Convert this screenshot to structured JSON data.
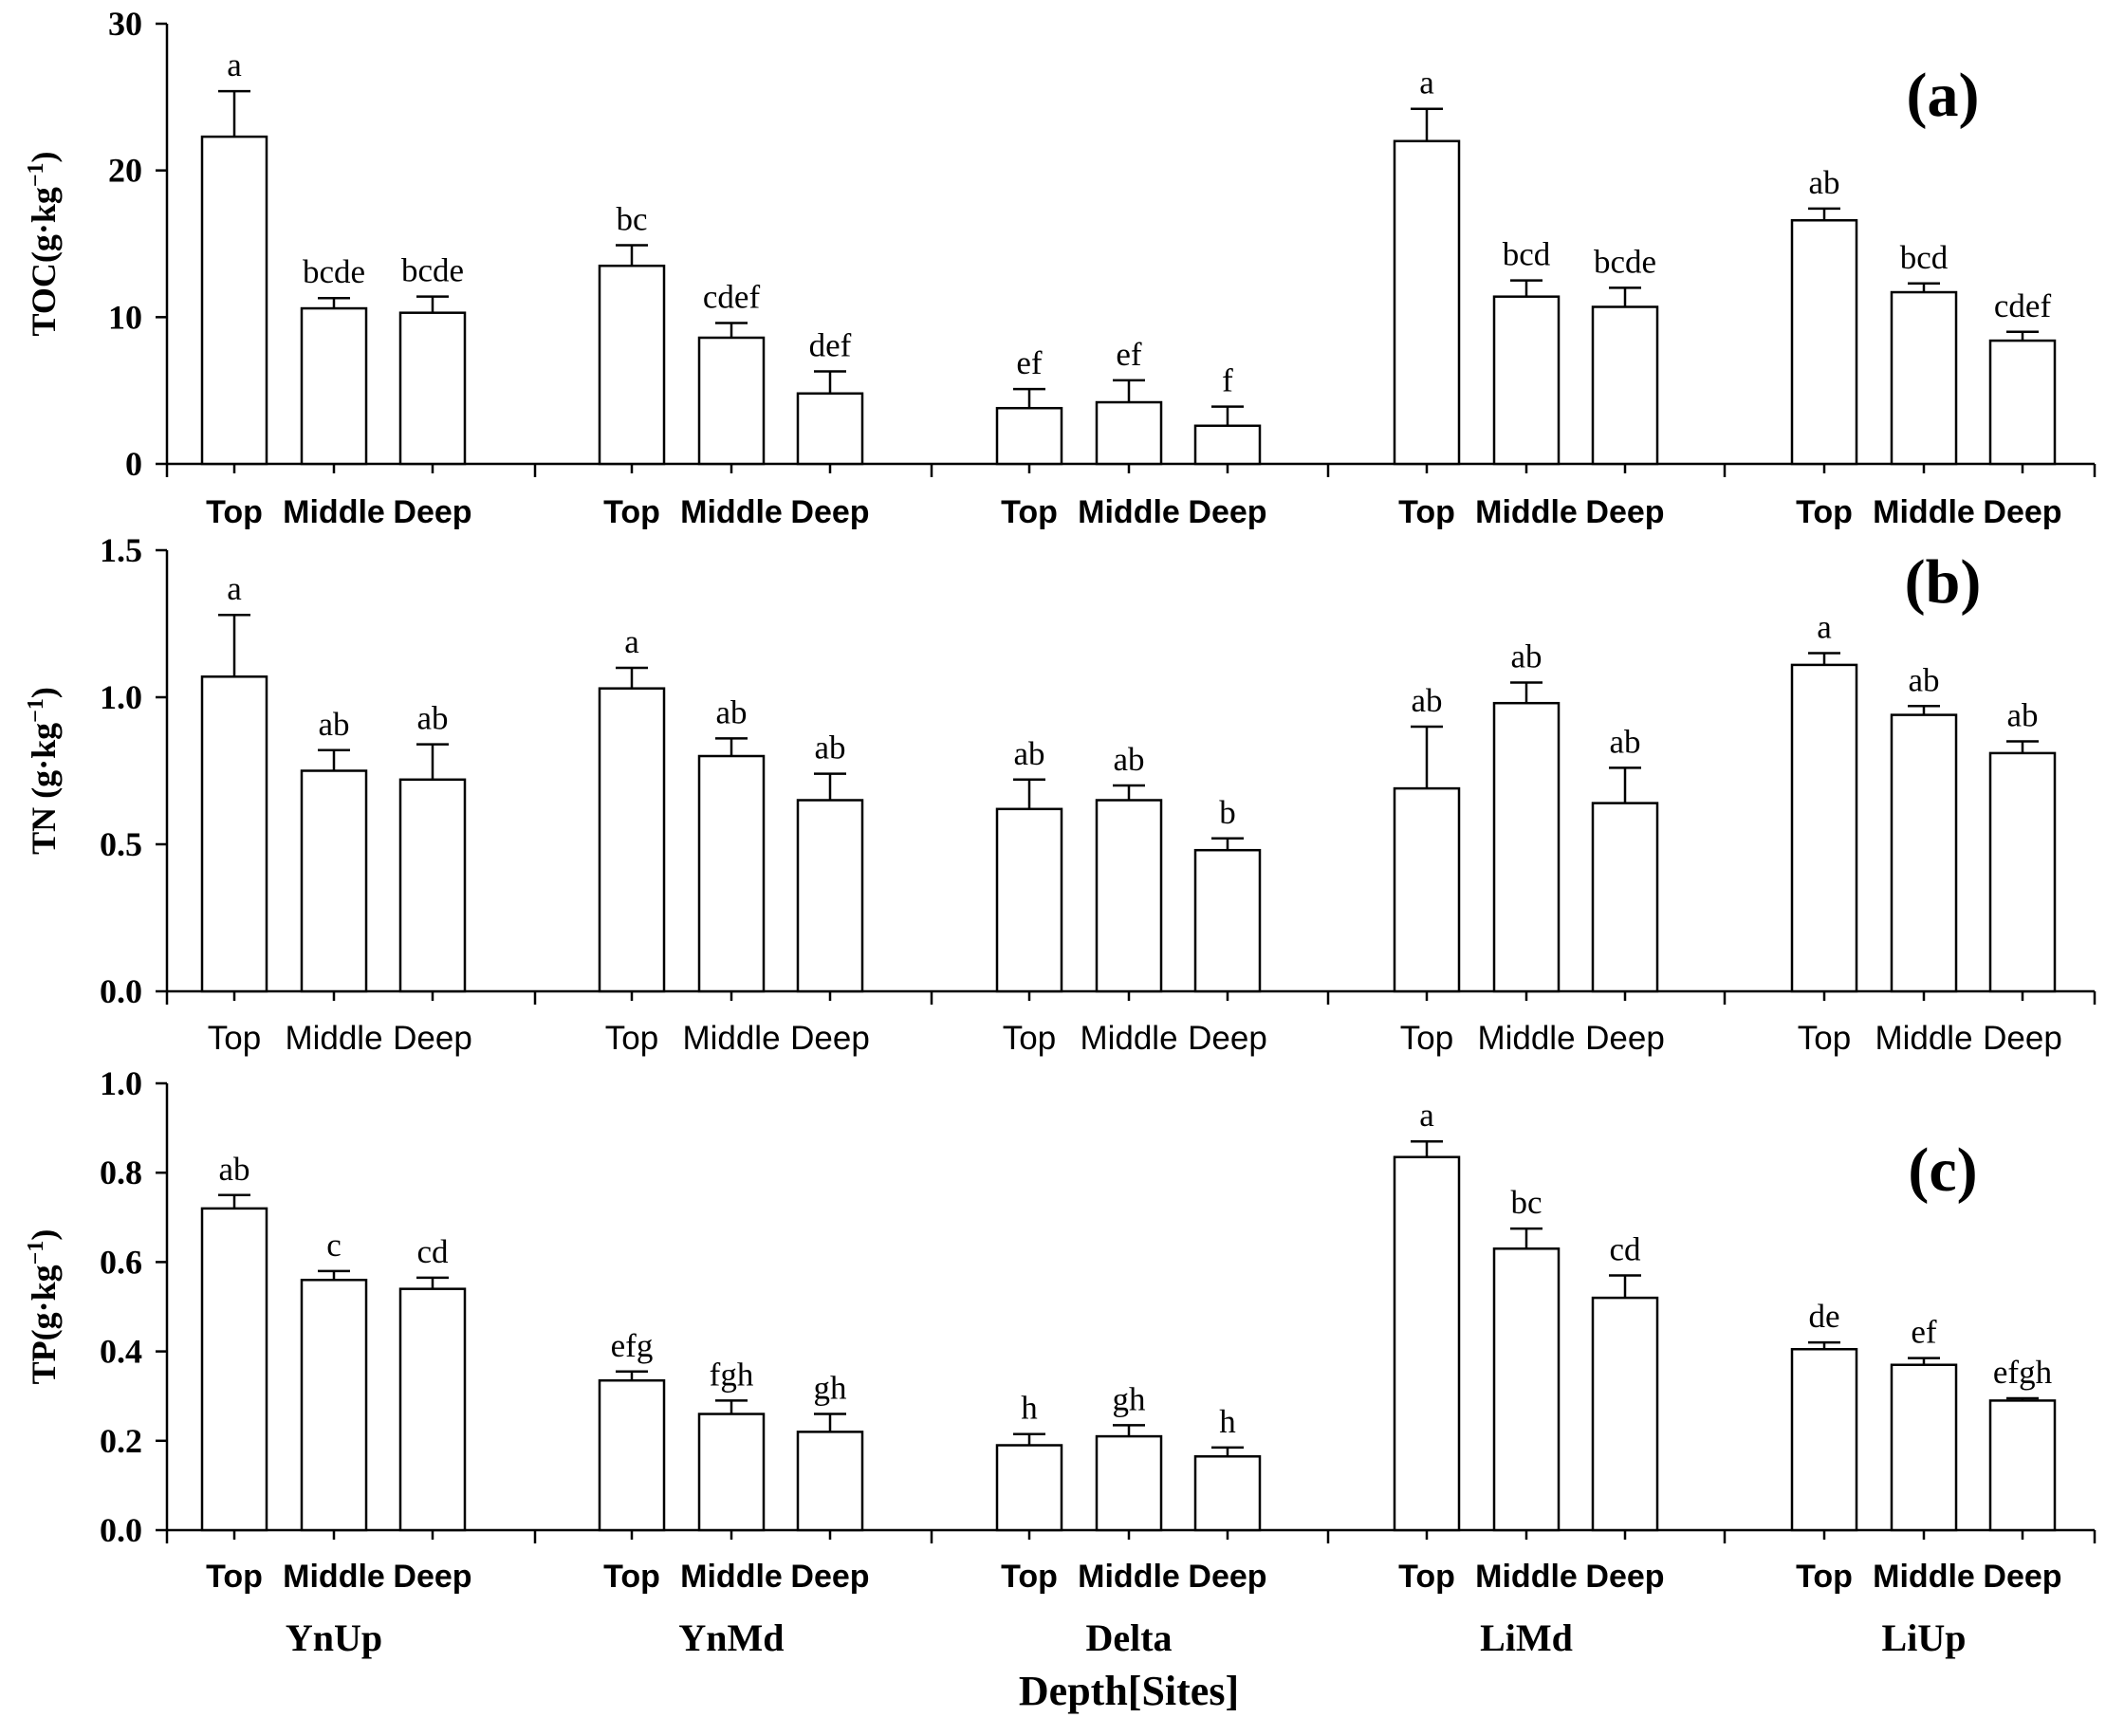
{
  "figure": {
    "x_title": "Depth[Sites]",
    "sites": [
      "YnUp",
      "YnMd",
      "Delta",
      "LiMd",
      "LiUp"
    ],
    "depths": [
      "Top",
      "Middle",
      "Deep"
    ]
  },
  "chart_data": [
    {
      "type": "bar",
      "panel_label": "(a)",
      "ylabel": "TOC(g·kg",
      "ylabel_sup": "−1",
      "ylabel_close": ")",
      "ylim": [
        0,
        30
      ],
      "yticks": [
        0,
        10,
        20,
        30
      ],
      "ytick_labels": [
        "0",
        "10",
        "20",
        "30"
      ],
      "depth_label_style": "bold",
      "categories": [
        "YnUp",
        "YnMd",
        "Delta",
        "LiMd",
        "LiUp"
      ],
      "series": [
        {
          "name": "Top",
          "values": [
            22.3,
            13.5,
            3.8,
            22.0,
            16.6
          ],
          "errors": [
            3.1,
            1.4,
            1.3,
            2.2,
            0.8
          ],
          "labels": [
            "a",
            "bc",
            "ef",
            "a",
            "ab"
          ]
        },
        {
          "name": "Middle",
          "values": [
            10.6,
            8.6,
            4.2,
            11.4,
            11.7
          ],
          "errors": [
            0.7,
            1.0,
            1.5,
            1.1,
            0.6
          ],
          "labels": [
            "bcde",
            "cdef",
            "ef",
            "bcd",
            "bcd"
          ]
        },
        {
          "name": "Deep",
          "values": [
            10.3,
            4.8,
            2.6,
            10.7,
            8.4
          ],
          "errors": [
            1.1,
            1.5,
            1.3,
            1.3,
            0.6
          ],
          "labels": [
            "bcde",
            "def",
            "f",
            "bcde",
            "cdef"
          ]
        }
      ]
    },
    {
      "type": "bar",
      "panel_label": "(b)",
      "ylabel": "TN (g·kg",
      "ylabel_sup": "−1",
      "ylabel_close": ")",
      "ylim": [
        0,
        1.5
      ],
      "yticks": [
        0,
        0.5,
        1.0,
        1.5
      ],
      "ytick_labels": [
        "0.0",
        "0.5",
        "1.0",
        "1.5"
      ],
      "depth_label_style": "normal",
      "categories": [
        "YnUp",
        "YnMd",
        "Delta",
        "LiMd",
        "LiUp"
      ],
      "series": [
        {
          "name": "Top",
          "values": [
            1.07,
            1.03,
            0.62,
            0.69,
            1.11
          ],
          "errors": [
            0.21,
            0.07,
            0.1,
            0.21,
            0.04
          ],
          "labels": [
            "a",
            "a",
            "ab",
            "ab",
            "a"
          ]
        },
        {
          "name": "Middle",
          "values": [
            0.75,
            0.8,
            0.65,
            0.98,
            0.94
          ],
          "errors": [
            0.07,
            0.06,
            0.05,
            0.07,
            0.03
          ],
          "labels": [
            "ab",
            "ab",
            "ab",
            "ab",
            "ab"
          ]
        },
        {
          "name": "Deep",
          "values": [
            0.72,
            0.65,
            0.48,
            0.64,
            0.81
          ],
          "errors": [
            0.12,
            0.09,
            0.04,
            0.12,
            0.04
          ],
          "labels": [
            "ab",
            "ab",
            "b",
            "ab",
            "ab"
          ]
        }
      ]
    },
    {
      "type": "bar",
      "panel_label": "(c)",
      "ylabel": "TP(g·kg",
      "ylabel_sup": "−1",
      "ylabel_close": ")",
      "ylim": [
        0,
        1.0
      ],
      "yticks": [
        0,
        0.2,
        0.4,
        0.6,
        0.8,
        1.0
      ],
      "ytick_labels": [
        "0.0",
        "0.2",
        "0.4",
        "0.6",
        "0.8",
        "1.0"
      ],
      "depth_label_style": "bold",
      "categories": [
        "YnUp",
        "YnMd",
        "Delta",
        "LiMd",
        "LiUp"
      ],
      "series": [
        {
          "name": "Top",
          "values": [
            0.72,
            0.335,
            0.19,
            0.835,
            0.405
          ],
          "errors": [
            0.03,
            0.02,
            0.025,
            0.035,
            0.015
          ],
          "labels": [
            "ab",
            "efg",
            "h",
            "a",
            "de"
          ]
        },
        {
          "name": "Middle",
          "values": [
            0.56,
            0.26,
            0.21,
            0.63,
            0.37
          ],
          "errors": [
            0.02,
            0.03,
            0.025,
            0.045,
            0.015
          ],
          "labels": [
            "c",
            "fgh",
            "gh",
            "bc",
            "ef"
          ]
        },
        {
          "name": "Deep",
          "values": [
            0.54,
            0.22,
            0.165,
            0.52,
            0.29
          ],
          "errors": [
            0.025,
            0.04,
            0.02,
            0.05,
            0.005
          ],
          "labels": [
            "cd",
            "gh",
            "h",
            "cd",
            "efgh"
          ]
        }
      ]
    }
  ]
}
